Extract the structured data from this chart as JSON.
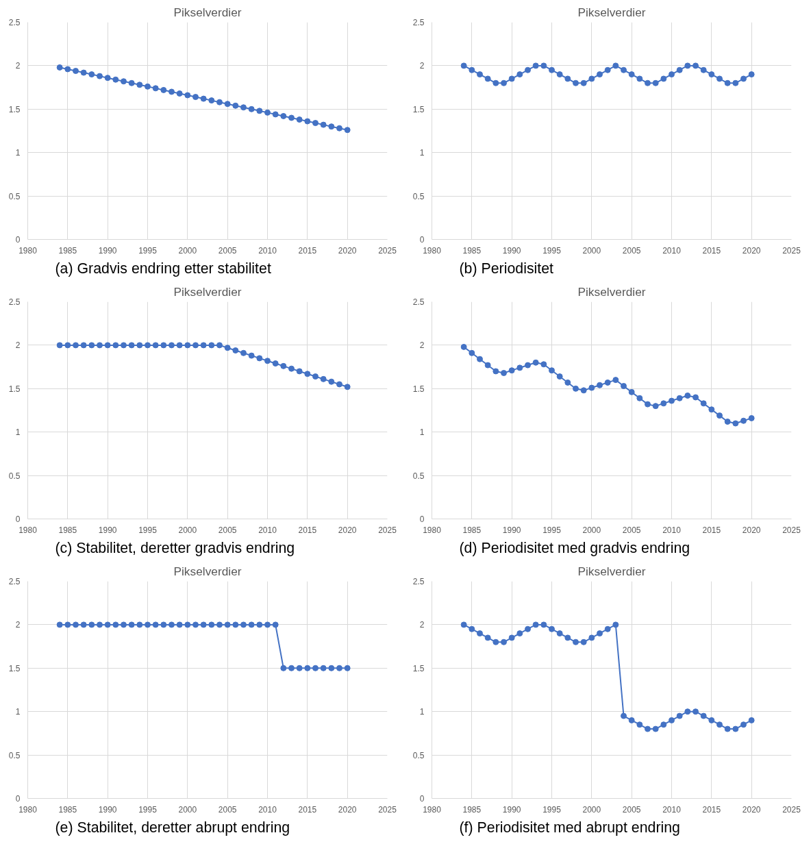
{
  "chart_data": [
    {
      "type": "line",
      "title": "Pikselverdier",
      "annotations": [
        "(a)  Gradvis endring etter stabilitet"
      ],
      "x": [
        1984,
        1985,
        1986,
        1987,
        1988,
        1989,
        1990,
        1991,
        1992,
        1993,
        1994,
        1995,
        1996,
        1997,
        1998,
        1999,
        2000,
        2001,
        2002,
        2003,
        2004,
        2005,
        2006,
        2007,
        2008,
        2009,
        2010,
        2011,
        2012,
        2013,
        2014,
        2015,
        2016,
        2017,
        2018,
        2019,
        2020
      ],
      "xlim": [
        1980,
        2025
      ],
      "xticks": [
        1980,
        1985,
        1990,
        1995,
        2000,
        2005,
        2010,
        2015,
        2020,
        2025
      ],
      "ylim": [
        0,
        2.5
      ],
      "yticks": [
        0,
        0.5,
        1,
        1.5,
        2,
        2.5
      ],
      "grid": true,
      "marker": "circle",
      "line_style": "solid",
      "series": [
        {
          "color": "#4472c4",
          "values": [
            1.98,
            1.96,
            1.94,
            1.92,
            1.9,
            1.88,
            1.86,
            1.84,
            1.82,
            1.8,
            1.78,
            1.76,
            1.74,
            1.72,
            1.7,
            1.68,
            1.66,
            1.64,
            1.62,
            1.6,
            1.58,
            1.56,
            1.54,
            1.52,
            1.5,
            1.48,
            1.46,
            1.44,
            1.42,
            1.4,
            1.38,
            1.36,
            1.34,
            1.32,
            1.3,
            1.28,
            1.26
          ]
        }
      ]
    },
    {
      "type": "line",
      "title": "Pikselverdier",
      "annotations": [
        "(b)  Periodisitet"
      ],
      "x": [
        1984,
        1985,
        1986,
        1987,
        1988,
        1989,
        1990,
        1991,
        1992,
        1993,
        1994,
        1995,
        1996,
        1997,
        1998,
        1999,
        2000,
        2001,
        2002,
        2003,
        2004,
        2005,
        2006,
        2007,
        2008,
        2009,
        2010,
        2011,
        2012,
        2013,
        2014,
        2015,
        2016,
        2017,
        2018,
        2019,
        2020
      ],
      "xlim": [
        1980,
        2025
      ],
      "xticks": [
        1980,
        1985,
        1990,
        1995,
        2000,
        2005,
        2010,
        2015,
        2020,
        2025
      ],
      "ylim": [
        0,
        2.5
      ],
      "yticks": [
        0,
        0.5,
        1,
        1.5,
        2,
        2.5
      ],
      "grid": true,
      "marker": "circle",
      "line_style": "solid",
      "series": [
        {
          "color": "#4472c4",
          "values": [
            2.0,
            1.95,
            1.9,
            1.85,
            1.8,
            1.8,
            1.85,
            1.9,
            1.95,
            2.0,
            2.0,
            1.95,
            1.9,
            1.85,
            1.8,
            1.8,
            1.85,
            1.9,
            1.95,
            2.0,
            1.95,
            1.9,
            1.85,
            1.8,
            1.8,
            1.85,
            1.9,
            1.95,
            2.0,
            2.0,
            1.95,
            1.9,
            1.85,
            1.8,
            1.8,
            1.85,
            1.9
          ]
        }
      ]
    },
    {
      "type": "line",
      "title": "Pikselverdier",
      "annotations": [
        "(c)  Stabilitet, deretter gradvis endring"
      ],
      "x": [
        1984,
        1985,
        1986,
        1987,
        1988,
        1989,
        1990,
        1991,
        1992,
        1993,
        1994,
        1995,
        1996,
        1997,
        1998,
        1999,
        2000,
        2001,
        2002,
        2003,
        2004,
        2005,
        2006,
        2007,
        2008,
        2009,
        2010,
        2011,
        2012,
        2013,
        2014,
        2015,
        2016,
        2017,
        2018,
        2019,
        2020
      ],
      "xlim": [
        1980,
        2025
      ],
      "xticks": [
        1980,
        1985,
        1990,
        1995,
        2000,
        2005,
        2010,
        2015,
        2020,
        2025
      ],
      "ylim": [
        0,
        2.5
      ],
      "yticks": [
        0,
        0.5,
        1,
        1.5,
        2,
        2.5
      ],
      "grid": true,
      "marker": "circle",
      "line_style": "solid",
      "series": [
        {
          "color": "#4472c4",
          "values": [
            2.0,
            2.0,
            2.0,
            2.0,
            2.0,
            2.0,
            2.0,
            2.0,
            2.0,
            2.0,
            2.0,
            2.0,
            2.0,
            2.0,
            2.0,
            2.0,
            2.0,
            2.0,
            2.0,
            2.0,
            2.0,
            1.97,
            1.94,
            1.91,
            1.88,
            1.85,
            1.82,
            1.79,
            1.76,
            1.73,
            1.7,
            1.67,
            1.64,
            1.61,
            1.58,
            1.55,
            1.52
          ]
        }
      ]
    },
    {
      "type": "line",
      "title": "Pikselverdier",
      "annotations": [
        "(d)  Periodisitet med gradvis endring"
      ],
      "x": [
        1984,
        1985,
        1986,
        1987,
        1988,
        1989,
        1990,
        1991,
        1992,
        1993,
        1994,
        1995,
        1996,
        1997,
        1998,
        1999,
        2000,
        2001,
        2002,
        2003,
        2004,
        2005,
        2006,
        2007,
        2008,
        2009,
        2010,
        2011,
        2012,
        2013,
        2014,
        2015,
        2016,
        2017,
        2018,
        2019,
        2020
      ],
      "xlim": [
        1980,
        2025
      ],
      "xticks": [
        1980,
        1985,
        1990,
        1995,
        2000,
        2005,
        2010,
        2015,
        2020,
        2025
      ],
      "ylim": [
        0,
        2.5
      ],
      "yticks": [
        0,
        0.5,
        1,
        1.5,
        2,
        2.5
      ],
      "grid": true,
      "marker": "circle",
      "line_style": "solid",
      "series": [
        {
          "color": "#4472c4",
          "values": [
            1.98,
            1.91,
            1.84,
            1.77,
            1.7,
            1.68,
            1.71,
            1.74,
            1.77,
            1.8,
            1.78,
            1.71,
            1.64,
            1.57,
            1.5,
            1.48,
            1.51,
            1.54,
            1.57,
            1.6,
            1.53,
            1.46,
            1.39,
            1.32,
            1.3,
            1.33,
            1.36,
            1.39,
            1.42,
            1.4,
            1.33,
            1.26,
            1.19,
            1.12,
            1.1,
            1.13,
            1.16
          ]
        }
      ]
    },
    {
      "type": "line",
      "title": "Pikselverdier",
      "annotations": [
        "(e)  Stabilitet, deretter abrupt endring"
      ],
      "x": [
        1984,
        1985,
        1986,
        1987,
        1988,
        1989,
        1990,
        1991,
        1992,
        1993,
        1994,
        1995,
        1996,
        1997,
        1998,
        1999,
        2000,
        2001,
        2002,
        2003,
        2004,
        2005,
        2006,
        2007,
        2008,
        2009,
        2010,
        2011,
        2012,
        2013,
        2014,
        2015,
        2016,
        2017,
        2018,
        2019,
        2020
      ],
      "xlim": [
        1980,
        2025
      ],
      "xticks": [
        1980,
        1985,
        1990,
        1995,
        2000,
        2005,
        2010,
        2015,
        2020,
        2025
      ],
      "ylim": [
        0,
        2.5
      ],
      "yticks": [
        0,
        0.5,
        1,
        1.5,
        2,
        2.5
      ],
      "grid": true,
      "marker": "circle",
      "line_style": "solid",
      "series": [
        {
          "color": "#4472c4",
          "values": [
            2.0,
            2.0,
            2.0,
            2.0,
            2.0,
            2.0,
            2.0,
            2.0,
            2.0,
            2.0,
            2.0,
            2.0,
            2.0,
            2.0,
            2.0,
            2.0,
            2.0,
            2.0,
            2.0,
            2.0,
            2.0,
            2.0,
            2.0,
            2.0,
            2.0,
            2.0,
            2.0,
            2.0,
            1.5,
            1.5,
            1.5,
            1.5,
            1.5,
            1.5,
            1.5,
            1.5,
            1.5
          ]
        }
      ]
    },
    {
      "type": "line",
      "title": "Pikselverdier",
      "annotations": [
        "(f)  Periodisitet med abrupt endring"
      ],
      "x": [
        1984,
        1985,
        1986,
        1987,
        1988,
        1989,
        1990,
        1991,
        1992,
        1993,
        1994,
        1995,
        1996,
        1997,
        1998,
        1999,
        2000,
        2001,
        2002,
        2003,
        2004,
        2005,
        2006,
        2007,
        2008,
        2009,
        2010,
        2011,
        2012,
        2013,
        2014,
        2015,
        2016,
        2017,
        2018,
        2019,
        2020
      ],
      "xlim": [
        1980,
        2025
      ],
      "xticks": [
        1980,
        1985,
        1990,
        1995,
        2000,
        2005,
        2010,
        2015,
        2020,
        2025
      ],
      "ylim": [
        0,
        2.5
      ],
      "yticks": [
        0,
        0.5,
        1,
        1.5,
        2,
        2.5
      ],
      "grid": true,
      "marker": "circle",
      "line_style": "solid",
      "series": [
        {
          "color": "#4472c4",
          "values": [
            2.0,
            1.95,
            1.9,
            1.85,
            1.8,
            1.8,
            1.85,
            1.9,
            1.95,
            2.0,
            2.0,
            1.95,
            1.9,
            1.85,
            1.8,
            1.8,
            1.85,
            1.9,
            1.95,
            2.0,
            0.95,
            0.9,
            0.85,
            0.8,
            0.8,
            0.85,
            0.9,
            0.95,
            1.0,
            1.0,
            0.95,
            0.9,
            0.85,
            0.8,
            0.8,
            0.85,
            0.9
          ]
        }
      ]
    }
  ]
}
